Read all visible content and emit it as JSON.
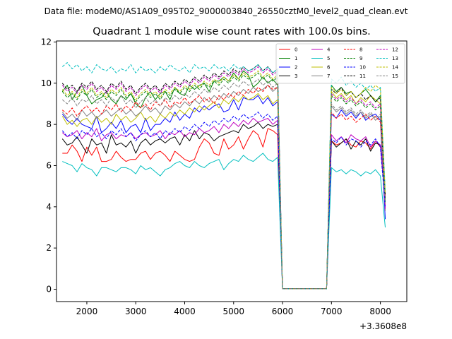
{
  "suptitle": "Data file: modeM0/AS1A09_095T02_9000003840_26550cztM0_level2_quad_clean.evt",
  "chart_data": {
    "type": "line",
    "title": "Quadrant 1 module wise count rates with 100.0s bins.",
    "xlabel": "",
    "ylabel": "",
    "x_offset_label": "+3.3608e8",
    "xlim": [
      1380,
      8540
    ],
    "ylim": [
      -0.6,
      12.05
    ],
    "x_ticks": [
      2000,
      3000,
      4000,
      5000,
      6000,
      7000,
      8000
    ],
    "y_ticks": [
      0,
      2,
      4,
      6,
      8,
      10,
      12
    ],
    "grid": false,
    "legend_position": "top-right",
    "gap": [
      6300,
      7200
    ],
    "x_start": 1500,
    "x_step": 100,
    "x_end": 8200,
    "series": [
      {
        "name": "0",
        "color": "#ff0000",
        "dash": "solid",
        "level": 6.6,
        "values": [
          6.6,
          6.6,
          7.0,
          6.7,
          6.2,
          6.9,
          6.5,
          6.9,
          6.2,
          6.2,
          6.3,
          6.7,
          6.4,
          6.2,
          6.3,
          6.3,
          6.6,
          6.7,
          6.3,
          6.6,
          6.7,
          6.5,
          6.2,
          6.7,
          6.5,
          6.3,
          6.2,
          6.3,
          6.9,
          7.3,
          7.1,
          6.6,
          6.5,
          7.3,
          6.8,
          7.0,
          7.4,
          6.8,
          7.3,
          7.7,
          7.5,
          6.9,
          7.8,
          7.7,
          7.5,
          0.02,
          0.02,
          0.02,
          0.02,
          0.02,
          0.02,
          0.02,
          0.02,
          0.02,
          0.02,
          7.2,
          7.0,
          7.1,
          7.3,
          7.0,
          6.9,
          7.2,
          7.1,
          6.8,
          7.2,
          6.9,
          4.6
        ]
      },
      {
        "name": "1",
        "color": "#008000",
        "dash": "solid",
        "level": 9.6,
        "values": [
          9.6,
          9.9,
          9.2,
          9.6,
          9.9,
          9.4,
          9.0,
          9.2,
          9.3,
          9.6,
          9.2,
          9.0,
          9.4,
          9.2,
          9.5,
          9.0,
          8.8,
          9.3,
          9.6,
          9.2,
          9.5,
          9.6,
          9.2,
          9.8,
          9.5,
          9.4,
          9.9,
          9.7,
          9.9,
          10.0,
          9.6,
          10.1,
          10.1,
          10.3,
          10.1,
          10.5,
          10.2,
          10.6,
          10.4,
          9.8,
          10.0,
          10.3,
          10.0,
          10.2,
          9.9,
          0.02,
          0.02,
          0.02,
          0.02,
          0.02,
          0.02,
          0.02,
          0.02,
          0.02,
          0.02,
          9.9,
          9.6,
          9.8,
          9.5,
          9.6,
          9.3,
          9.5,
          9.7,
          9.4,
          9.1,
          9.4,
          4.3
        ]
      },
      {
        "name": "2",
        "color": "#0000ff",
        "dash": "solid",
        "level": 8.4,
        "values": [
          8.5,
          8.2,
          8.0,
          8.3,
          8.0,
          7.9,
          7.8,
          8.4,
          7.6,
          7.8,
          8.1,
          7.8,
          8.2,
          7.6,
          7.9,
          8.0,
          7.6,
          8.3,
          7.7,
          8.0,
          8.0,
          8.3,
          8.1,
          8.6,
          8.2,
          8.5,
          8.3,
          8.8,
          8.6,
          8.9,
          8.7,
          8.9,
          9.0,
          8.6,
          8.7,
          9.2,
          8.7,
          9.3,
          9.2,
          9.2,
          9.4,
          9.0,
          9.3,
          8.9,
          9.1,
          0.02,
          0.02,
          0.02,
          0.02,
          0.02,
          0.02,
          0.02,
          0.02,
          0.02,
          0.02,
          8.5,
          8.3,
          8.7,
          8.4,
          8.6,
          8.3,
          8.6,
          8.2,
          8.4,
          8.5,
          8.2,
          3.4
        ]
      },
      {
        "name": "3",
        "color": "#000000",
        "dash": "solid",
        "level": 7.0,
        "values": [
          7.3,
          7.0,
          7.1,
          7.4,
          7.0,
          6.6,
          7.3,
          7.0,
          7.1,
          6.6,
          7.5,
          7.0,
          7.1,
          6.9,
          7.2,
          6.6,
          7.1,
          7.3,
          7.0,
          7.2,
          7.3,
          7.1,
          7.3,
          7.4,
          7.0,
          7.5,
          7.2,
          7.7,
          7.3,
          7.6,
          7.5,
          7.2,
          7.4,
          7.5,
          7.6,
          7.7,
          7.6,
          8.0,
          7.8,
          7.9,
          8.1,
          7.8,
          8.0,
          7.9,
          8.0,
          0.02,
          0.02,
          0.02,
          0.02,
          0.02,
          0.02,
          0.02,
          0.02,
          0.02,
          0.02,
          7.2,
          6.9,
          7.1,
          7.3,
          6.8,
          7.2,
          7.0,
          7.3,
          6.7,
          7.1,
          7.0,
          4.4
        ]
      },
      {
        "name": "4",
        "color": "#bf00bf",
        "dash": "solid",
        "level": 7.5,
        "values": [
          7.6,
          7.4,
          7.5,
          7.7,
          7.3,
          7.6,
          7.4,
          7.8,
          7.2,
          7.5,
          7.6,
          7.3,
          7.5,
          7.4,
          7.6,
          7.3,
          7.5,
          7.6,
          7.4,
          7.5,
          7.7,
          7.3,
          7.6,
          7.5,
          7.7,
          7.4,
          7.6,
          7.5,
          7.8,
          7.6,
          7.7,
          7.9,
          7.6,
          8.0,
          7.8,
          8.1,
          7.9,
          8.2,
          8.0,
          8.3,
          8.1,
          8.2,
          8.3,
          8.0,
          8.2,
          0.02,
          0.02,
          0.02,
          0.02,
          0.02,
          0.02,
          0.02,
          0.02,
          0.02,
          0.02,
          7.5,
          7.2,
          7.4,
          7.1,
          7.5,
          7.3,
          7.2,
          7.4,
          6.9,
          7.2,
          7.0,
          4.5
        ]
      },
      {
        "name": "5",
        "color": "#00bfbf",
        "dash": "solid",
        "level": 6.0,
        "values": [
          6.2,
          6.1,
          6.0,
          5.7,
          6.1,
          5.9,
          5.8,
          5.5,
          5.9,
          5.9,
          5.8,
          5.7,
          5.9,
          5.9,
          5.8,
          5.6,
          6.0,
          5.8,
          5.9,
          5.7,
          5.5,
          5.8,
          5.9,
          6.1,
          6.2,
          6.0,
          5.9,
          6.2,
          6.0,
          5.9,
          6.1,
          6.2,
          6.3,
          5.8,
          6.1,
          6.3,
          6.2,
          6.5,
          6.3,
          6.2,
          6.4,
          6.6,
          6.3,
          6.2,
          6.4,
          0.02,
          0.02,
          0.02,
          0.02,
          0.02,
          0.02,
          0.02,
          0.02,
          0.02,
          0.02,
          5.9,
          5.7,
          5.8,
          5.6,
          5.8,
          5.7,
          5.5,
          5.7,
          5.6,
          5.8,
          5.5,
          3.0
        ]
      },
      {
        "name": "6",
        "color": "#bfbf00",
        "dash": "solid",
        "level": 8.1,
        "values": [
          8.4,
          8.0,
          8.2,
          7.9,
          8.2,
          8.3,
          8.0,
          8.4,
          8.1,
          8.3,
          8.0,
          8.5,
          8.2,
          8.4,
          8.1,
          8.3,
          8.6,
          8.2,
          8.4,
          8.1,
          8.5,
          8.3,
          8.6,
          8.4,
          8.7,
          8.5,
          8.8,
          8.6,
          8.9,
          8.7,
          8.9,
          9.1,
          8.8,
          9.2,
          9.0,
          9.3,
          9.1,
          9.4,
          9.2,
          9.3,
          9.5,
          9.2,
          9.4,
          9.0,
          9.2,
          0.02,
          0.02,
          0.02,
          0.02,
          0.02,
          0.02,
          0.02,
          0.02,
          0.02,
          0.02,
          9.6,
          9.3,
          9.5,
          9.2,
          9.4,
          9.0,
          9.3,
          9.1,
          9.4,
          9.2,
          9.0,
          4.1
        ]
      },
      {
        "name": "7",
        "color": "#808080",
        "dash": "solid",
        "level": 8.4,
        "values": [
          8.6,
          8.3,
          8.5,
          8.2,
          8.7,
          8.4,
          8.6,
          8.3,
          8.5,
          8.7,
          8.4,
          8.6,
          8.8,
          8.5,
          8.7,
          8.4,
          8.6,
          8.9,
          8.6,
          8.8,
          8.5,
          8.9,
          8.7,
          9.0,
          8.8,
          9.1,
          8.9,
          9.2,
          9.0,
          9.3,
          9.1,
          9.4,
          9.2,
          9.5,
          9.3,
          9.6,
          9.4,
          9.7,
          9.5,
          9.8,
          9.6,
          9.7,
          9.9,
          9.6,
          9.8,
          0.02,
          0.02,
          0.02,
          0.02,
          0.02,
          0.02,
          0.02,
          0.02,
          0.02,
          0.02,
          8.9,
          8.6,
          8.8,
          8.5,
          8.7,
          8.4,
          8.6,
          8.3,
          8.5,
          8.2,
          8.4,
          3.8
        ]
      },
      {
        "name": "8",
        "color": "#ff0000",
        "dash": "dashed",
        "level": 8.6,
        "values": [
          8.7,
          8.5,
          8.8,
          8.4,
          8.7,
          8.9,
          8.6,
          8.8,
          8.5,
          8.9,
          8.7,
          9.0,
          8.6,
          8.9,
          8.7,
          9.1,
          8.8,
          9.0,
          8.7,
          9.1,
          8.9,
          9.2,
          8.8,
          9.1,
          9.0,
          9.3,
          9.0,
          9.2,
          9.4,
          9.1,
          9.3,
          9.0,
          9.4,
          9.2,
          9.5,
          9.3,
          9.6,
          9.4,
          9.7,
          9.5,
          9.8,
          9.6,
          9.9,
          9.7,
          9.8,
          0.02,
          0.02,
          0.02,
          0.02,
          0.02,
          0.02,
          0.02,
          0.02,
          0.02,
          0.02,
          8.6,
          8.3,
          8.5,
          8.2,
          8.4,
          8.1,
          8.3,
          8.5,
          8.2,
          8.4,
          8.1,
          4.5
        ]
      },
      {
        "name": "9",
        "color": "#008000",
        "dash": "dashed",
        "level": 9.4,
        "values": [
          9.6,
          9.3,
          9.5,
          9.2,
          9.6,
          9.4,
          9.7,
          9.3,
          9.5,
          9.2,
          9.6,
          9.4,
          9.7,
          9.3,
          9.5,
          9.1,
          9.4,
          9.6,
          9.3,
          9.5,
          9.2,
          9.6,
          9.4,
          9.7,
          9.5,
          9.8,
          9.6,
          9.9,
          9.7,
          10.0,
          9.8,
          10.1,
          9.9,
          10.2,
          10.0,
          10.3,
          10.1,
          10.4,
          10.2,
          10.3,
          10.5,
          10.2,
          10.4,
          10.1,
          10.3,
          0.02,
          0.02,
          0.02,
          0.02,
          0.02,
          0.02,
          0.02,
          0.02,
          0.02,
          0.02,
          9.4,
          9.1,
          9.3,
          9.0,
          9.2,
          8.9,
          9.1,
          8.8,
          9.0,
          8.7,
          8.9,
          4.2
        ]
      },
      {
        "name": "10",
        "color": "#0000ff",
        "dash": "dashed",
        "level": 7.5,
        "values": [
          7.7,
          7.4,
          7.6,
          7.3,
          7.7,
          7.5,
          7.8,
          7.4,
          7.6,
          7.3,
          7.7,
          7.5,
          7.8,
          7.4,
          7.6,
          7.2,
          7.5,
          7.7,
          7.4,
          7.6,
          7.3,
          7.7,
          7.5,
          7.8,
          7.6,
          7.9,
          7.7,
          8.0,
          7.8,
          8.1,
          7.9,
          8.2,
          8.0,
          8.3,
          8.1,
          8.4,
          8.2,
          8.5,
          8.3,
          8.4,
          8.6,
          8.3,
          8.5,
          8.2,
          8.4,
          0.02,
          0.02,
          0.02,
          0.02,
          0.02,
          0.02,
          0.02,
          0.02,
          0.02,
          0.02,
          7.3,
          7.1,
          7.4,
          7.0,
          7.3,
          7.2,
          6.9,
          7.2,
          7.0,
          7.3,
          6.9,
          4.0
        ]
      },
      {
        "name": "11",
        "color": "#000000",
        "dash": "dashed",
        "level": 9.9,
        "values": [
          10.0,
          9.7,
          9.9,
          9.6,
          10.0,
          9.8,
          10.1,
          9.7,
          9.9,
          9.6,
          10.0,
          9.8,
          10.1,
          9.7,
          9.9,
          9.5,
          9.8,
          10.0,
          9.7,
          9.9,
          9.6,
          10.0,
          9.8,
          10.1,
          9.9,
          10.2,
          10.0,
          10.3,
          10.1,
          10.4,
          10.2,
          10.5,
          10.3,
          10.6,
          10.4,
          10.7,
          10.5,
          10.8,
          10.6,
          10.7,
          10.9,
          10.6,
          10.8,
          10.5,
          10.7,
          0.02,
          0.02,
          0.02,
          0.02,
          0.02,
          0.02,
          0.02,
          0.02,
          0.02,
          0.02,
          9.7,
          9.5,
          9.8,
          9.4,
          9.6,
          9.3,
          9.5,
          9.2,
          9.4,
          9.1,
          9.3,
          4.6
        ]
      },
      {
        "name": "12",
        "color": "#bf00bf",
        "dash": "dashed",
        "level": 9.7,
        "values": [
          9.9,
          9.6,
          9.8,
          9.5,
          9.9,
          9.7,
          10.0,
          9.6,
          9.8,
          9.5,
          9.9,
          9.7,
          10.0,
          9.6,
          9.8,
          9.4,
          9.7,
          9.9,
          9.6,
          9.8,
          9.5,
          9.9,
          9.7,
          10.0,
          9.8,
          10.1,
          9.9,
          10.2,
          10.0,
          10.3,
          10.1,
          10.4,
          10.2,
          10.5,
          10.3,
          10.6,
          10.4,
          10.7,
          10.5,
          10.6,
          10.8,
          10.5,
          10.7,
          10.4,
          10.6,
          0.02,
          0.02,
          0.02,
          0.02,
          0.02,
          0.02,
          0.02,
          0.02,
          0.02,
          0.02,
          9.5,
          9.2,
          9.4,
          9.1,
          9.3,
          9.0,
          9.2,
          8.9,
          9.1,
          8.8,
          9.0,
          3.9
        ]
      },
      {
        "name": "13",
        "color": "#00bfbf",
        "dash": "dashed",
        "level": 10.7,
        "values": [
          10.8,
          11.0,
          10.7,
          10.9,
          10.6,
          10.8,
          10.5,
          10.9,
          10.7,
          10.6,
          10.8,
          10.5,
          10.7,
          10.6,
          10.9,
          10.5,
          10.8,
          10.6,
          10.7,
          10.5,
          10.8,
          10.6,
          10.9,
          10.7,
          10.6,
          10.8,
          10.5,
          10.9,
          10.7,
          10.8,
          10.6,
          10.9,
          10.7,
          10.8,
          10.6,
          10.9,
          10.7,
          10.8,
          10.6,
          10.7,
          10.9,
          10.6,
          10.8,
          10.5,
          10.7,
          0.02,
          0.02,
          0.02,
          0.02,
          0.02,
          0.02,
          0.02,
          0.02,
          0.02,
          0.02,
          10.2,
          10.0,
          10.3,
          9.9,
          10.1,
          9.8,
          10.0,
          9.7,
          9.9,
          9.6,
          9.8,
          4.8
        ]
      },
      {
        "name": "14",
        "color": "#bfbf00",
        "dash": "dashed",
        "level": 9.5,
        "values": [
          9.7,
          9.4,
          9.6,
          9.3,
          9.7,
          9.5,
          9.8,
          9.4,
          9.6,
          9.3,
          9.7,
          9.5,
          9.8,
          9.4,
          9.6,
          9.2,
          9.5,
          9.7,
          9.4,
          9.6,
          9.3,
          9.7,
          9.5,
          9.8,
          9.6,
          9.9,
          9.7,
          10.0,
          9.8,
          10.1,
          9.9,
          10.2,
          10.0,
          10.3,
          10.1,
          10.4,
          10.2,
          10.5,
          10.3,
          10.4,
          10.6,
          10.3,
          10.5,
          10.2,
          10.4,
          0.02,
          0.02,
          0.02,
          0.02,
          0.02,
          0.02,
          0.02,
          0.02,
          0.02,
          0.02,
          9.8,
          9.5,
          9.7,
          9.4,
          9.6,
          9.3,
          9.5,
          9.8,
          9.6,
          9.9,
          9.7,
          4.7
        ]
      },
      {
        "name": "15",
        "color": "#808080",
        "dash": "dashed",
        "level": 9.1,
        "values": [
          9.2,
          9.0,
          9.3,
          8.9,
          9.2,
          9.1,
          9.4,
          9.0,
          9.2,
          8.9,
          9.3,
          9.1,
          9.4,
          9.0,
          9.2,
          8.8,
          9.1,
          9.3,
          9.0,
          9.2,
          8.9,
          9.3,
          9.1,
          9.4,
          9.2,
          9.5,
          9.3,
          9.6,
          9.4,
          9.7,
          9.5,
          9.8,
          9.6,
          9.9,
          9.7,
          10.0,
          9.8,
          10.1,
          9.9,
          10.0,
          10.2,
          9.9,
          10.1,
          9.8,
          10.0,
          0.02,
          0.02,
          0.02,
          0.02,
          0.02,
          0.02,
          0.02,
          0.02,
          0.02,
          0.02,
          9.0,
          8.7,
          8.9,
          8.6,
          8.8,
          8.5,
          8.7,
          8.4,
          8.6,
          8.3,
          8.5,
          4.2
        ]
      }
    ]
  }
}
